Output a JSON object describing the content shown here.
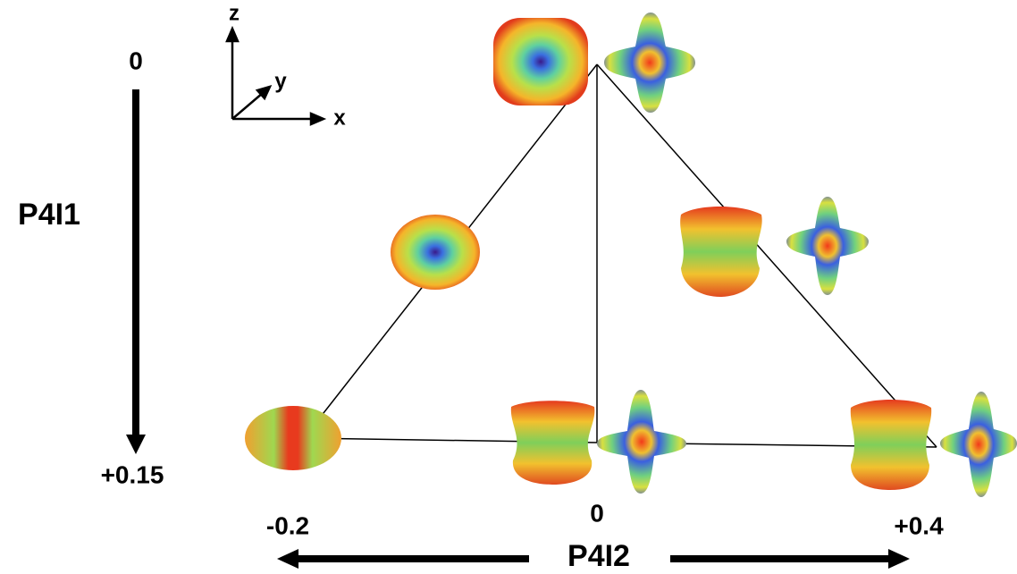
{
  "vertical_axis": {
    "label": "P4I1",
    "top": "0",
    "bottom": "+0.15"
  },
  "horizontal_axis": {
    "label": "P4I2",
    "left": "-0.2",
    "center": "0",
    "right": "+0.4"
  },
  "axes_legend": {
    "z": "z",
    "y": "y",
    "x": "x"
  }
}
